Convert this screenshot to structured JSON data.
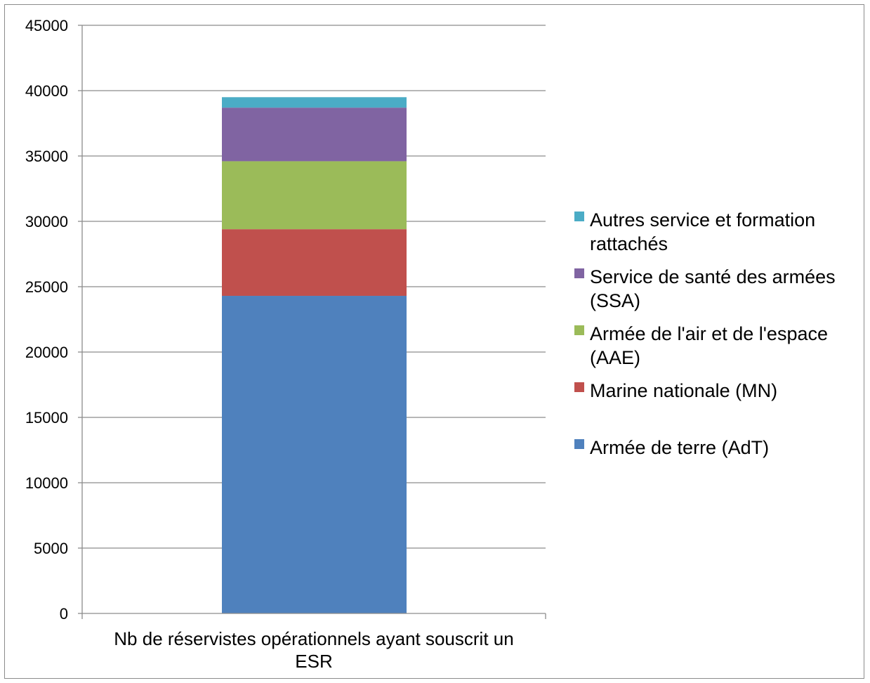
{
  "chart_data": {
    "type": "bar",
    "stacked": true,
    "categories": [
      "Nb de réservistes opérationnels ayant souscrit un ESR"
    ],
    "series": [
      {
        "name": "Armée de terre (AdT)",
        "values": [
          24300
        ],
        "color": "#4F81BD"
      },
      {
        "name": "Marine nationale (MN)",
        "values": [
          5100
        ],
        "color": "#C0504D"
      },
      {
        "name": "Armée de l'air et de l'espace (AAE)",
        "values": [
          5200
        ],
        "color": "#9BBB59"
      },
      {
        "name": "Service de santé des armées (SSA)",
        "values": [
          4100
        ],
        "color": "#8064A2"
      },
      {
        "name": "Autres service et formation rattachés",
        "values": [
          800
        ],
        "color": "#4BACC6"
      }
    ],
    "ylim": [
      0,
      45000
    ],
    "yticks": [
      0,
      5000,
      10000,
      15000,
      20000,
      25000,
      30000,
      35000,
      40000,
      45000
    ],
    "grid": true,
    "legend_position": "right"
  }
}
